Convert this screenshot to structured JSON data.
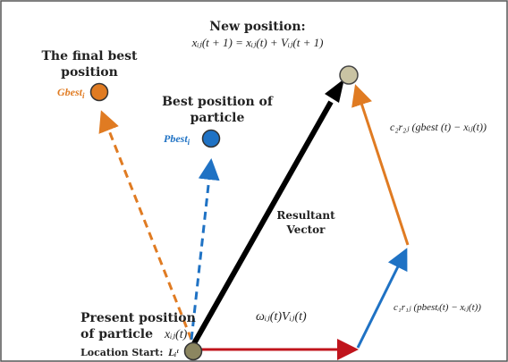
{
  "labels": {
    "new_position_title": "New position:",
    "new_position_formula": "xᵢⱼ(t + 1) = xᵢⱼ(t) + Vᵢⱼ(t + 1)",
    "final_best_line1": "The final best",
    "final_best_line2": "position",
    "gbest": "Gbest",
    "gbest_sub": "i",
    "best_particle_line1": "Best position of",
    "best_particle_line2": "particle",
    "pbest": "Pbest",
    "pbest_sub": "i",
    "resultant_line1": "Resultant",
    "resultant_line2": "Vector",
    "inertia_term": "ωᵢⱼ(t)Vᵢⱼ(t)",
    "social_term": "c₂r₂ⱼ (gbest (t) − xᵢⱼ(t))",
    "cognitive_term": "c₁r₁ⱼ (pbestᵢ(t) − xᵢⱼ(t))",
    "present_line1": "Present position",
    "present_line2": "of particle",
    "present_var": "xᵢⱼ(t)",
    "location_start": "Location Start:",
    "location_var": "Lᵢᵗ"
  },
  "colors": {
    "gbest": "#e07b22",
    "pbest": "#1f72c4",
    "new_position": "#c9c3a3",
    "start": "#8c8660",
    "inertia_arrow": "#c0141c",
    "cognitive_arrow": "#1f72c4",
    "social_arrow": "#e07b22",
    "resultant_arrow": "#000000",
    "border": "#555555"
  }
}
